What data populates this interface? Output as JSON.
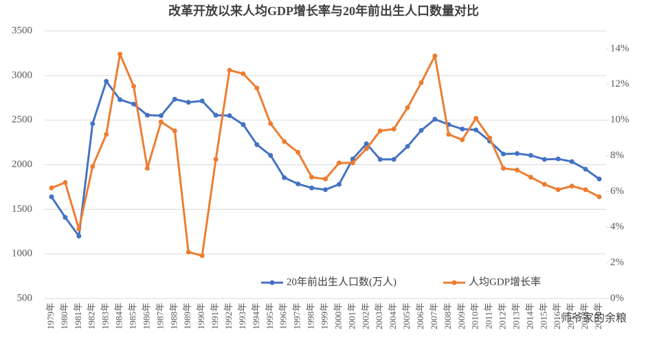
{
  "chart_data": {
    "type": "line",
    "title": "改革开放以来人均GDP增长率与20年前出生人口数量对比",
    "categories": [
      "1979年",
      "1980年",
      "1981年",
      "1982年",
      "1983年",
      "1984年",
      "1985年",
      "1986年",
      "1987年",
      "1988年",
      "1989年",
      "1990年",
      "1991年",
      "1992年",
      "1993年",
      "1994年",
      "1995年",
      "1996年",
      "1997年",
      "1998年",
      "1999年",
      "2000年",
      "2001年",
      "2002年",
      "2003年",
      "2004年",
      "2005年",
      "2006年",
      "2007年",
      "2008年",
      "2009年",
      "2010年",
      "2011年",
      "2012年",
      "2013年",
      "2014年",
      "2015年",
      "2016年",
      "2017年",
      "2018年",
      "2019年"
    ],
    "series": [
      {
        "name": "20年前出生人口数(万人)",
        "color": "#4472c4",
        "values": [
          1640,
          1410,
          1200,
          2460,
          2935,
          2730,
          2680,
          2555,
          2550,
          2735,
          2700,
          2715,
          2555,
          2550,
          2450,
          2225,
          2105,
          1855,
          1785,
          1740,
          1720,
          1780,
          2065,
          2235,
          2060,
          2060,
          2205,
          2385,
          2510,
          2450,
          2400,
          2390,
          2265,
          2120,
          2125,
          2105,
          2060,
          2065,
          2035,
          1950,
          1840
        ]
      },
      {
        "name": "人均GDP增长率",
        "color": "#ed7d31",
        "axis": "y2",
        "values": [
          6.2,
          6.5,
          3.9,
          7.4,
          9.2,
          13.7,
          11.9,
          7.3,
          9.9,
          9.4,
          2.6,
          2.4,
          7.8,
          12.8,
          12.6,
          11.8,
          9.8,
          8.8,
          8.2,
          6.8,
          6.7,
          7.6,
          7.6,
          8.4,
          9.4,
          9.5,
          10.7,
          12.1,
          13.6,
          9.2,
          8.9,
          10.1,
          9.0,
          7.3,
          7.2,
          6.8,
          6.4,
          6.1,
          6.3,
          6.1,
          5.7
        ]
      }
    ],
    "ylim": [
      500,
      3500
    ],
    "yticks": [
      500,
      1000,
      1500,
      2000,
      2500,
      3000,
      3500
    ],
    "y2lim": [
      0,
      15
    ],
    "y2ticks": [
      {
        "value": 0,
        "label": "0%"
      },
      {
        "value": 2,
        "label": "2%"
      },
      {
        "value": 4,
        "label": "4%"
      },
      {
        "value": 6,
        "label": "6%"
      },
      {
        "value": 8,
        "label": "8%"
      },
      {
        "value": 10,
        "label": "10%"
      },
      {
        "value": 12,
        "label": "12%"
      },
      {
        "value": 14,
        "label": "14%"
      }
    ],
    "grid": true,
    "legend": "bottom",
    "watermark": "师爷家的余粮"
  }
}
